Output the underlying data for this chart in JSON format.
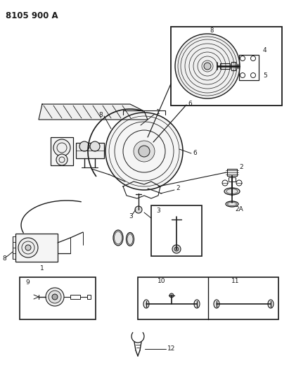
{
  "title": "8105 900 A",
  "bg_color": "#ffffff",
  "line_color": "#1a1a1a",
  "title_fontsize": 8.5,
  "fig_width": 4.11,
  "fig_height": 5.33,
  "dpi": 100
}
